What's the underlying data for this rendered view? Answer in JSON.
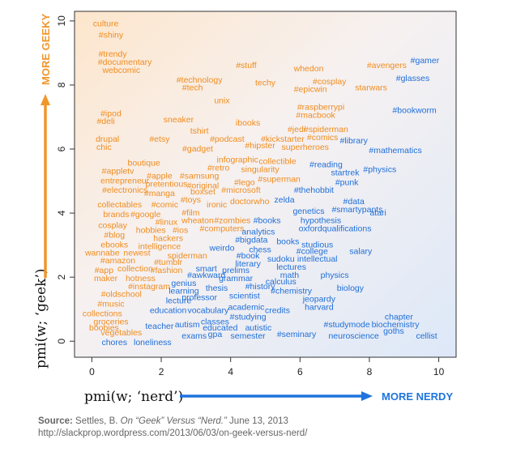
{
  "chart_data": {
    "type": "scatter",
    "title": "",
    "xlabel": "pmi(w; ‘nerd’)",
    "ylabel": "pmi(w; ‘geek’)",
    "x_arrow_label": "MORE NERDY",
    "y_arrow_label": "MORE GEEKY",
    "xlim": [
      -0.5,
      10.5
    ],
    "ylim": [
      -0.5,
      10.3
    ],
    "xticks": [
      "0",
      "2",
      "4",
      "6",
      "8",
      "10"
    ],
    "yticks": [
      "0",
      "2",
      "4",
      "6",
      "8",
      "10"
    ],
    "grid": false,
    "colors": {
      "geek": "#f08c1e",
      "nerd": "#1f6fd8",
      "arrow_geek": "#f0962a",
      "arrow_nerd": "#1f74dd"
    },
    "points": [
      {
        "word": "culture",
        "x": 0.4,
        "y": 9.9,
        "c": "geek"
      },
      {
        "word": "#shiny",
        "x": 0.55,
        "y": 9.55,
        "c": "geek"
      },
      {
        "word": "#trendy",
        "x": 0.6,
        "y": 8.95,
        "c": "geek"
      },
      {
        "word": "#documentary",
        "x": 0.95,
        "y": 8.7,
        "c": "geek"
      },
      {
        "word": "webcomic",
        "x": 0.85,
        "y": 8.45,
        "c": "geek"
      },
      {
        "word": "#stuff",
        "x": 4.45,
        "y": 8.6,
        "c": "geek"
      },
      {
        "word": "whedon",
        "x": 6.25,
        "y": 8.5,
        "c": "geek"
      },
      {
        "word": "#avengers",
        "x": 8.5,
        "y": 8.6,
        "c": "geek"
      },
      {
        "word": "#gamer",
        "x": 9.6,
        "y": 8.75,
        "c": "nerd"
      },
      {
        "word": "#technology",
        "x": 3.1,
        "y": 8.15,
        "c": "geek"
      },
      {
        "word": "#tech",
        "x": 2.9,
        "y": 7.9,
        "c": "geek"
      },
      {
        "word": "techy",
        "x": 5.0,
        "y": 8.05,
        "c": "geek"
      },
      {
        "word": "#cosplay",
        "x": 6.85,
        "y": 8.1,
        "c": "geek"
      },
      {
        "word": "#epicwin",
        "x": 6.3,
        "y": 7.85,
        "c": "geek"
      },
      {
        "word": "starwars",
        "x": 8.05,
        "y": 7.9,
        "c": "geek"
      },
      {
        "word": "#glasses",
        "x": 9.25,
        "y": 8.2,
        "c": "nerd"
      },
      {
        "word": "unix",
        "x": 3.75,
        "y": 7.5,
        "c": "geek"
      },
      {
        "word": "#raspberrypi",
        "x": 6.6,
        "y": 7.3,
        "c": "geek"
      },
      {
        "word": "#macbook",
        "x": 6.45,
        "y": 7.05,
        "c": "geek"
      },
      {
        "word": "#bookworm",
        "x": 9.3,
        "y": 7.2,
        "c": "nerd"
      },
      {
        "word": "#ipod",
        "x": 0.55,
        "y": 7.1,
        "c": "geek"
      },
      {
        "word": "#deli",
        "x": 0.4,
        "y": 6.85,
        "c": "geek"
      },
      {
        "word": "sneaker",
        "x": 2.5,
        "y": 6.9,
        "c": "geek"
      },
      {
        "word": "ibooks",
        "x": 4.5,
        "y": 6.8,
        "c": "geek"
      },
      {
        "word": "tshirt",
        "x": 3.1,
        "y": 6.55,
        "c": "geek"
      },
      {
        "word": "#jedi",
        "x": 5.9,
        "y": 6.6,
        "c": "geek"
      },
      {
        "word": "#spiderman",
        "x": 6.75,
        "y": 6.6,
        "c": "geek"
      },
      {
        "word": "drupal",
        "x": 0.45,
        "y": 6.3,
        "c": "geek"
      },
      {
        "word": "#etsy",
        "x": 1.95,
        "y": 6.3,
        "c": "geek"
      },
      {
        "word": "#podcast",
        "x": 3.9,
        "y": 6.3,
        "c": "geek"
      },
      {
        "word": "#kickstarter",
        "x": 5.5,
        "y": 6.3,
        "c": "geek"
      },
      {
        "word": "#comics",
        "x": 6.65,
        "y": 6.35,
        "c": "geek"
      },
      {
        "word": "#library",
        "x": 7.55,
        "y": 6.25,
        "c": "nerd"
      },
      {
        "word": "chic",
        "x": 0.35,
        "y": 6.05,
        "c": "geek"
      },
      {
        "word": "#gadget",
        "x": 3.05,
        "y": 6.0,
        "c": "geek"
      },
      {
        "word": "#hipster",
        "x": 4.85,
        "y": 6.1,
        "c": "geek"
      },
      {
        "word": "superheroes",
        "x": 6.15,
        "y": 6.05,
        "c": "geek"
      },
      {
        "word": "#mathematics",
        "x": 8.75,
        "y": 5.95,
        "c": "nerd"
      },
      {
        "word": "infographic",
        "x": 4.2,
        "y": 5.65,
        "c": "geek"
      },
      {
        "word": "collectible",
        "x": 5.35,
        "y": 5.6,
        "c": "geek"
      },
      {
        "word": "boutique",
        "x": 1.5,
        "y": 5.55,
        "c": "geek"
      },
      {
        "word": "#retro",
        "x": 3.65,
        "y": 5.4,
        "c": "geek"
      },
      {
        "word": "singularity",
        "x": 4.85,
        "y": 5.35,
        "c": "geek"
      },
      {
        "word": "#reading",
        "x": 6.75,
        "y": 5.5,
        "c": "nerd"
      },
      {
        "word": "#appletv",
        "x": 0.75,
        "y": 5.3,
        "c": "geek"
      },
      {
        "word": "#apple",
        "x": 1.95,
        "y": 5.15,
        "c": "geek"
      },
      {
        "word": "#samsung",
        "x": 3.1,
        "y": 5.15,
        "c": "geek"
      },
      {
        "word": "#physics",
        "x": 8.3,
        "y": 5.35,
        "c": "nerd"
      },
      {
        "word": "startrek",
        "x": 7.3,
        "y": 5.25,
        "c": "nerd"
      },
      {
        "word": "entrepreneur",
        "x": 0.95,
        "y": 5.0,
        "c": "geek"
      },
      {
        "word": "pretentious",
        "x": 2.15,
        "y": 4.9,
        "c": "geek"
      },
      {
        "word": "#original",
        "x": 3.2,
        "y": 4.85,
        "c": "geek"
      },
      {
        "word": "#lego",
        "x": 4.4,
        "y": 4.95,
        "c": "geek"
      },
      {
        "word": "#superman",
        "x": 5.4,
        "y": 5.05,
        "c": "geek"
      },
      {
        "word": "#punk",
        "x": 7.35,
        "y": 4.95,
        "c": "nerd"
      },
      {
        "word": "#electronics",
        "x": 0.95,
        "y": 4.7,
        "c": "geek"
      },
      {
        "word": "#manga",
        "x": 1.95,
        "y": 4.6,
        "c": "geek"
      },
      {
        "word": "boxset",
        "x": 3.2,
        "y": 4.65,
        "c": "geek"
      },
      {
        "word": "#microsoft",
        "x": 4.3,
        "y": 4.7,
        "c": "geek"
      },
      {
        "word": "#thehobbit",
        "x": 6.4,
        "y": 4.7,
        "c": "nerd"
      },
      {
        "word": "#toys",
        "x": 2.85,
        "y": 4.4,
        "c": "geek"
      },
      {
        "word": "doctorwho",
        "x": 4.55,
        "y": 4.35,
        "c": "geek"
      },
      {
        "word": "zelda",
        "x": 5.55,
        "y": 4.4,
        "c": "nerd"
      },
      {
        "word": "collectables",
        "x": 0.8,
        "y": 4.25,
        "c": "geek"
      },
      {
        "word": "#comic",
        "x": 2.1,
        "y": 4.25,
        "c": "geek"
      },
      {
        "word": "ironic",
        "x": 3.6,
        "y": 4.25,
        "c": "geek"
      },
      {
        "word": "#data",
        "x": 7.55,
        "y": 4.35,
        "c": "nerd"
      },
      {
        "word": "#smartypants",
        "x": 7.65,
        "y": 4.1,
        "c": "nerd"
      },
      {
        "word": "brands",
        "x": 0.7,
        "y": 3.95,
        "c": "geek"
      },
      {
        "word": "#google",
        "x": 1.55,
        "y": 3.95,
        "c": "geek"
      },
      {
        "word": "#film",
        "x": 2.85,
        "y": 4.0,
        "c": "geek"
      },
      {
        "word": "genetics",
        "x": 6.25,
        "y": 4.05,
        "c": "nerd"
      },
      {
        "word": "atari",
        "x": 8.25,
        "y": 4.0,
        "c": "nerd"
      },
      {
        "word": "#linux",
        "x": 2.15,
        "y": 3.7,
        "c": "geek"
      },
      {
        "word": "wheaton",
        "x": 3.05,
        "y": 3.75,
        "c": "geek"
      },
      {
        "word": "#zombies",
        "x": 4.05,
        "y": 3.75,
        "c": "geek"
      },
      {
        "word": "#books",
        "x": 5.05,
        "y": 3.75,
        "c": "nerd"
      },
      {
        "word": "hypothesis",
        "x": 6.6,
        "y": 3.75,
        "c": "nerd"
      },
      {
        "word": "cosplay",
        "x": 0.6,
        "y": 3.6,
        "c": "geek"
      },
      {
        "word": "hobbies",
        "x": 1.7,
        "y": 3.45,
        "c": "geek"
      },
      {
        "word": "#ios",
        "x": 2.55,
        "y": 3.45,
        "c": "geek"
      },
      {
        "word": "#computers",
        "x": 3.75,
        "y": 3.5,
        "c": "geek"
      },
      {
        "word": "analytics",
        "x": 4.8,
        "y": 3.4,
        "c": "nerd"
      },
      {
        "word": "oxford",
        "x": 6.3,
        "y": 3.5,
        "c": "nerd"
      },
      {
        "word": "qualifications",
        "x": 7.35,
        "y": 3.5,
        "c": "nerd"
      },
      {
        "word": "#blog",
        "x": 0.65,
        "y": 3.3,
        "c": "geek"
      },
      {
        "word": "hackers",
        "x": 2.2,
        "y": 3.2,
        "c": "geek"
      },
      {
        "word": "#bigdata",
        "x": 4.6,
        "y": 3.15,
        "c": "nerd"
      },
      {
        "word": "books",
        "x": 5.65,
        "y": 3.1,
        "c": "nerd"
      },
      {
        "word": "studious",
        "x": 6.5,
        "y": 3.0,
        "c": "nerd"
      },
      {
        "word": "ebooks",
        "x": 0.65,
        "y": 3.0,
        "c": "geek"
      },
      {
        "word": "intelligence",
        "x": 1.95,
        "y": 2.95,
        "c": "geek"
      },
      {
        "word": "weirdo",
        "x": 3.75,
        "y": 2.9,
        "c": "nerd"
      },
      {
        "word": "chess",
        "x": 4.85,
        "y": 2.85,
        "c": "nerd"
      },
      {
        "word": "#college",
        "x": 6.35,
        "y": 2.8,
        "c": "nerd"
      },
      {
        "word": "salary",
        "x": 7.75,
        "y": 2.8,
        "c": "nerd"
      },
      {
        "word": "wannabe",
        "x": 0.3,
        "y": 2.75,
        "c": "geek"
      },
      {
        "word": "newest",
        "x": 1.3,
        "y": 2.75,
        "c": "geek"
      },
      {
        "word": "spiderman",
        "x": 2.75,
        "y": 2.65,
        "c": "geek"
      },
      {
        "word": "#book",
        "x": 4.5,
        "y": 2.65,
        "c": "nerd"
      },
      {
        "word": "sudoku",
        "x": 5.45,
        "y": 2.55,
        "c": "nerd"
      },
      {
        "word": "intellectual",
        "x": 6.5,
        "y": 2.55,
        "c": "nerd"
      },
      {
        "word": "#amazon",
        "x": 0.75,
        "y": 2.5,
        "c": "geek"
      },
      {
        "word": "#tumblr",
        "x": 2.2,
        "y": 2.45,
        "c": "geek"
      },
      {
        "word": "literary",
        "x": 4.5,
        "y": 2.4,
        "c": "nerd"
      },
      {
        "word": "lectures",
        "x": 5.75,
        "y": 2.3,
        "c": "nerd"
      },
      {
        "word": "#app",
        "x": 0.35,
        "y": 2.2,
        "c": "geek"
      },
      {
        "word": "collection",
        "x": 1.25,
        "y": 2.25,
        "c": "geek"
      },
      {
        "word": "#fashion",
        "x": 2.15,
        "y": 2.2,
        "c": "geek"
      },
      {
        "word": "smart",
        "x": 3.3,
        "y": 2.25,
        "c": "nerd"
      },
      {
        "word": "prelims",
        "x": 4.15,
        "y": 2.2,
        "c": "nerd"
      },
      {
        "word": "math",
        "x": 5.7,
        "y": 2.05,
        "c": "nerd"
      },
      {
        "word": "physics",
        "x": 7.0,
        "y": 2.05,
        "c": "nerd"
      },
      {
        "word": "maker",
        "x": 0.4,
        "y": 1.95,
        "c": "geek"
      },
      {
        "word": "hotness",
        "x": 1.4,
        "y": 1.95,
        "c": "geek"
      },
      {
        "word": "#awkward",
        "x": 3.3,
        "y": 2.05,
        "c": "nerd"
      },
      {
        "word": "grammar",
        "x": 4.15,
        "y": 1.95,
        "c": "nerd"
      },
      {
        "word": "calculus",
        "x": 5.45,
        "y": 1.85,
        "c": "nerd"
      },
      {
        "word": "#instagram",
        "x": 1.65,
        "y": 1.7,
        "c": "geek"
      },
      {
        "word": "genius",
        "x": 2.65,
        "y": 1.8,
        "c": "nerd"
      },
      {
        "word": "thesis",
        "x": 3.6,
        "y": 1.65,
        "c": "nerd"
      },
      {
        "word": "#history",
        "x": 4.85,
        "y": 1.7,
        "c": "nerd"
      },
      {
        "word": "biology",
        "x": 7.45,
        "y": 1.65,
        "c": "nerd"
      },
      {
        "word": "learning",
        "x": 2.65,
        "y": 1.55,
        "c": "nerd"
      },
      {
        "word": "#chemistry",
        "x": 5.75,
        "y": 1.55,
        "c": "nerd"
      },
      {
        "word": "#oldschool",
        "x": 0.85,
        "y": 1.45,
        "c": "geek"
      },
      {
        "word": "professor",
        "x": 3.1,
        "y": 1.35,
        "c": "nerd"
      },
      {
        "word": "scientist",
        "x": 4.4,
        "y": 1.4,
        "c": "nerd"
      },
      {
        "word": "jeopardy",
        "x": 6.55,
        "y": 1.3,
        "c": "nerd"
      },
      {
        "word": "lecture",
        "x": 2.5,
        "y": 1.25,
        "c": "nerd"
      },
      {
        "word": "#music",
        "x": 0.55,
        "y": 1.15,
        "c": "geek"
      },
      {
        "word": "harvard",
        "x": 6.55,
        "y": 1.05,
        "c": "nerd"
      },
      {
        "word": "academic",
        "x": 4.45,
        "y": 1.05,
        "c": "nerd"
      },
      {
        "word": "education",
        "x": 2.2,
        "y": 0.95,
        "c": "nerd"
      },
      {
        "word": "vocabulary",
        "x": 3.35,
        "y": 0.95,
        "c": "nerd"
      },
      {
        "word": "credits",
        "x": 5.35,
        "y": 0.95,
        "c": "nerd"
      },
      {
        "word": "collections",
        "x": 0.3,
        "y": 0.85,
        "c": "geek"
      },
      {
        "word": "#studying",
        "x": 4.5,
        "y": 0.75,
        "c": "nerd"
      },
      {
        "word": "chapter",
        "x": 8.85,
        "y": 0.75,
        "c": "nerd"
      },
      {
        "word": "groceries",
        "x": 0.55,
        "y": 0.6,
        "c": "geek"
      },
      {
        "word": "classes",
        "x": 3.55,
        "y": 0.6,
        "c": "nerd"
      },
      {
        "word": "#studymode",
        "x": 7.35,
        "y": 0.5,
        "c": "nerd"
      },
      {
        "word": "biochemistry",
        "x": 8.75,
        "y": 0.5,
        "c": "nerd"
      },
      {
        "word": "boobies",
        "x": 0.35,
        "y": 0.4,
        "c": "geek"
      },
      {
        "word": "teacher",
        "x": 1.95,
        "y": 0.45,
        "c": "nerd"
      },
      {
        "word": "autism",
        "x": 2.75,
        "y": 0.5,
        "c": "nerd"
      },
      {
        "word": "educated",
        "x": 3.7,
        "y": 0.4,
        "c": "nerd"
      },
      {
        "word": "autistic",
        "x": 4.8,
        "y": 0.4,
        "c": "nerd"
      },
      {
        "word": "goths",
        "x": 8.7,
        "y": 0.3,
        "c": "nerd"
      },
      {
        "word": "vegetables",
        "x": 0.85,
        "y": 0.25,
        "c": "geek"
      },
      {
        "word": "exams",
        "x": 2.95,
        "y": 0.15,
        "c": "nerd"
      },
      {
        "word": "gpa",
        "x": 3.55,
        "y": 0.2,
        "c": "nerd"
      },
      {
        "word": "semester",
        "x": 4.5,
        "y": 0.15,
        "c": "nerd"
      },
      {
        "word": "#seminary",
        "x": 5.9,
        "y": 0.2,
        "c": "nerd"
      },
      {
        "word": "neuroscience",
        "x": 7.55,
        "y": 0.15,
        "c": "nerd"
      },
      {
        "word": "cellist",
        "x": 9.65,
        "y": 0.15,
        "c": "nerd"
      },
      {
        "word": "chores",
        "x": 0.65,
        "y": -0.05,
        "c": "nerd"
      },
      {
        "word": "loneliness",
        "x": 1.75,
        "y": -0.05,
        "c": "nerd"
      }
    ]
  },
  "source": {
    "label": "Source:",
    "text_before": " Settles, B. ",
    "title": "On “Geek” Versus “Nerd.”",
    "text_after": " June 13, 2013",
    "url": "http://slackprop.wordpress.com/2013/06/03/on-geek-versus-nerd/"
  }
}
